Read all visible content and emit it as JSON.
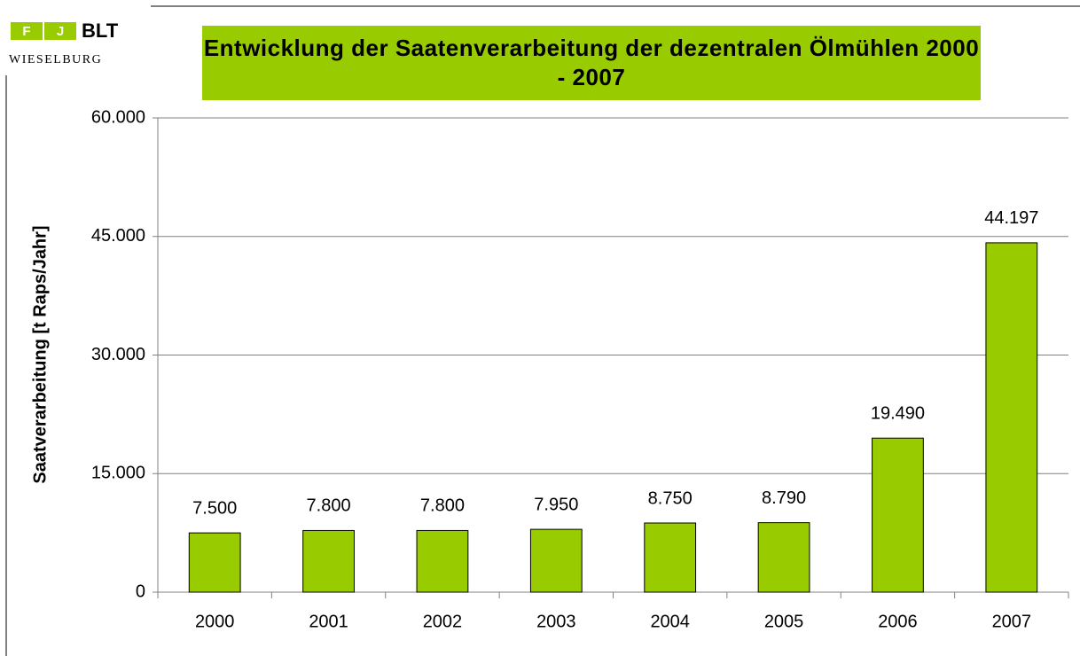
{
  "logo": {
    "f": "F",
    "j": "J",
    "brand": "BLT",
    "place": "WIESELBURG"
  },
  "chart_data": {
    "type": "bar",
    "title": "Entwicklung der Saatenverarbeitung der dezentralen Ölmühlen 2000 - 2007",
    "y_label": "Saatverarbeitung [t Raps/Jahr]",
    "categories": [
      "2000",
      "2001",
      "2002",
      "2003",
      "2004",
      "2005",
      "2006",
      "2007"
    ],
    "values": [
      7500,
      7800,
      7800,
      7950,
      8750,
      8790,
      19490,
      44197
    ],
    "value_labels": [
      "7.500",
      "7.800",
      "7.800",
      "7.950",
      "8.750",
      "8.790",
      "19.490",
      "44.197"
    ],
    "color": "#99cc00",
    "ylim": [
      0,
      60000
    ],
    "yticks": [
      0,
      {
        "value": 15000,
        "label": "15.000"
      },
      {
        "value": 30000,
        "label": "30.000"
      },
      {
        "value": 45000,
        "label": "45.000"
      },
      {
        "value": 60000,
        "label": "60.000"
      }
    ],
    "grid": true
  }
}
